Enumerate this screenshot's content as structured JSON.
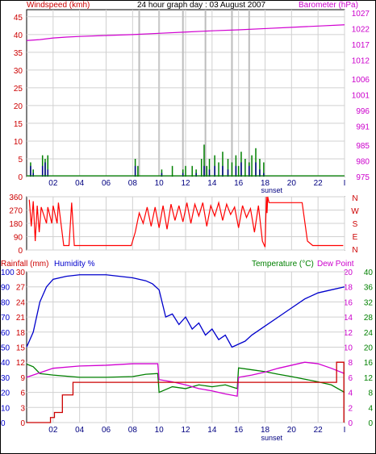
{
  "header": {
    "left_label": "Windspeed (kmh)",
    "title": "24 hour graph day : 03 August 2007",
    "right_label": "Barometer (hPa)"
  },
  "colors": {
    "windspeed": "#00008b",
    "gust": "#008000",
    "barometer": "#d100d1",
    "direction": "#ff0000",
    "temperature": "#008000",
    "dewpoint": "#d100d1",
    "humidity": "#0000cc",
    "rainfall": "#cc0000",
    "axis_red": "#cc0000",
    "axis_magenta": "#cc00cc",
    "axis_green": "#008000",
    "axis_blue": "#0000cc"
  },
  "bottom_legend": {
    "rainfall": "Rainfall (mm)",
    "humidity": "Humidity %",
    "temperature": "Temperature (°C)",
    "dewpoint": "Dew Point"
  },
  "x_axis": {
    "hour_labels": [
      "02",
      "04",
      "06",
      "08",
      "10",
      "12",
      "14",
      "16",
      "18",
      "20",
      "22",
      "I"
    ],
    "sunset_label": "sunset"
  },
  "chart_data": [
    {
      "type": "line",
      "name": "wind_barometer",
      "x_range_hours": [
        0,
        24
      ],
      "gray_lines_hours": [
        8.5,
        10,
        11.8,
        13.5,
        15.5,
        16.8
      ],
      "y_left": {
        "label": "Windspeed (kmh)",
        "ticks": [
          0,
          5,
          10,
          15,
          20,
          25,
          30,
          35,
          40,
          45
        ],
        "range": [
          0,
          47
        ]
      },
      "y_right": {
        "label": "Barometer (hPa)",
        "ticks": [
          975,
          980,
          985,
          991,
          996,
          1001,
          1006,
          1012,
          1017,
          1022,
          1027
        ],
        "range": [
          975,
          1028
        ]
      },
      "series": [
        {
          "key": "barometer",
          "axis": "right",
          "x": [
            0,
            1,
            2,
            3,
            4,
            6,
            8,
            10,
            12,
            14,
            16,
            18,
            20,
            22,
            24
          ],
          "y": [
            1018.2,
            1018.5,
            1019.0,
            1019.3,
            1019.5,
            1019.8,
            1020.1,
            1020.5,
            1020.9,
            1021.3,
            1021.6,
            1022.0,
            1022.4,
            1022.8,
            1023.2
          ]
        },
        {
          "key": "gust",
          "axis": "left",
          "x": [
            0.3,
            0.5,
            1.2,
            1.4,
            1.6,
            8.2,
            8.4,
            10.2,
            11.0,
            11.8,
            12.0,
            12.5,
            12.8,
            13.2,
            13.4,
            13.6,
            13.8,
            14.2,
            14.5,
            14.8,
            15.2,
            15.5,
            15.8,
            16.0,
            16.2,
            16.5,
            16.8,
            17.0,
            17.3,
            17.6,
            17.9
          ],
          "y": [
            4,
            2,
            6,
            5,
            6,
            5,
            3,
            2,
            3,
            2,
            3,
            3,
            2,
            5,
            9,
            3,
            5,
            6,
            4,
            7,
            5,
            4,
            6,
            3,
            7,
            5,
            4,
            6,
            8,
            5,
            4
          ]
        },
        {
          "key": "windspeed",
          "axis": "left",
          "x": [
            0.3,
            0.5,
            1.2,
            1.4,
            1.6,
            8.2,
            10.2,
            11.8,
            12.8,
            13.4,
            13.8,
            14.2,
            14.8,
            15.2,
            15.8,
            16.2,
            16.8,
            17.3,
            17.6,
            17.9
          ],
          "y": [
            3,
            1,
            3,
            4,
            2,
            3,
            1,
            1,
            1,
            3,
            2,
            3,
            3,
            2,
            3,
            4,
            3,
            4,
            2,
            1
          ]
        }
      ]
    },
    {
      "type": "line",
      "name": "wind_direction",
      "x_range_hours": [
        0,
        24
      ],
      "y_left": {
        "ticks": [
          0,
          90,
          180,
          270,
          360
        ],
        "range": [
          0,
          360
        ]
      },
      "y_right_labels": [
        "N",
        "W",
        "S",
        "E",
        "N"
      ],
      "series": [
        {
          "key": "direction",
          "x": [
            0.2,
            0.35,
            0.5,
            0.65,
            0.8,
            0.95,
            1.1,
            1.5,
            1.6,
            1.9,
            2.0,
            2.3,
            2.4,
            2.8,
            3.0,
            3.2,
            3.4,
            3.6,
            3.8,
            4.5,
            5.0,
            6.0,
            7.0,
            7.9,
            8.2,
            8.5,
            8.8,
            9.1,
            9.4,
            9.7,
            10.0,
            10.3,
            10.6,
            10.9,
            11.2,
            11.5,
            11.8,
            12.1,
            12.4,
            12.7,
            13.0,
            13.3,
            13.6,
            13.9,
            14.2,
            14.5,
            14.8,
            15.1,
            15.4,
            15.7,
            16.0,
            16.3,
            16.6,
            16.9,
            17.2,
            17.5,
            17.8,
            18.0,
            18.1,
            18.15,
            18.2,
            18.3,
            18.6,
            18.8,
            19.0,
            19.5,
            20.0,
            20.5,
            20.8,
            21.2,
            21.6,
            22.0,
            23.0,
            23.9
          ],
          "y": [
            340,
            160,
            330,
            60,
            300,
            120,
            290,
            180,
            290,
            180,
            300,
            180,
            320,
            30,
            30,
            30,
            320,
            30,
            30,
            30,
            30,
            30,
            30,
            30,
            120,
            250,
            180,
            290,
            160,
            290,
            150,
            300,
            140,
            310,
            200,
            300,
            190,
            320,
            180,
            310,
            230,
            320,
            160,
            300,
            230,
            320,
            200,
            310,
            240,
            290,
            150,
            300,
            220,
            280,
            120,
            300,
            60,
            20,
            360,
            250,
            360,
            320,
            320,
            320,
            320,
            320,
            320,
            320,
            320,
            60,
            30,
            30,
            30,
            30
          ]
        }
      ]
    },
    {
      "type": "line",
      "name": "temperature_humidity_rain",
      "x_range_hours": [
        0,
        24
      ],
      "y_axes": {
        "humidity": {
          "ticks": [
            0,
            10,
            20,
            30,
            40,
            50,
            60,
            70,
            80,
            90,
            100
          ],
          "range": [
            0,
            100
          ]
        },
        "rainfall": {
          "ticks": [
            0,
            3,
            6,
            9,
            12,
            15,
            18,
            21,
            24,
            27,
            30
          ],
          "range": [
            0,
            30
          ]
        },
        "temperature": {
          "ticks": [
            0,
            4,
            8,
            12,
            16,
            20,
            24,
            28,
            32,
            36,
            40
          ],
          "range": [
            0,
            40
          ]
        },
        "dewpoint": {
          "ticks": [
            0,
            2,
            4,
            6,
            8,
            10,
            12,
            14,
            16,
            18,
            20
          ],
          "range": [
            0,
            20
          ]
        }
      },
      "series": [
        {
          "key": "humidity",
          "x": [
            0,
            0.5,
            1.0,
            1.5,
            2.0,
            3.0,
            4.0,
            5.0,
            6.0,
            7.0,
            8.0,
            9.0,
            9.5,
            10.0,
            10.5,
            11.0,
            11.5,
            12.0,
            12.5,
            13.0,
            13.5,
            14.0,
            14.5,
            15.0,
            15.5,
            16.0,
            16.5,
            17.0,
            18.0,
            19.0,
            20.0,
            21.0,
            22.0,
            23.0,
            24.0
          ],
          "y": [
            50,
            60,
            80,
            90,
            95,
            97,
            98,
            98,
            98,
            97,
            96,
            94,
            92,
            88,
            70,
            72,
            65,
            70,
            62,
            66,
            58,
            62,
            55,
            58,
            50,
            52,
            54,
            58,
            64,
            70,
            76,
            82,
            86,
            88,
            90
          ]
        },
        {
          "key": "temperature",
          "x": [
            0,
            0.5,
            1.0,
            2.0,
            3.0,
            4.0,
            6.0,
            8.0,
            9.0,
            9.9,
            10.0,
            11.0,
            12.0,
            13.0,
            14.0,
            15.0,
            15.9,
            16.0,
            17.0,
            18.0,
            19.0,
            20.0,
            21.0,
            22.0,
            23.0,
            24.0
          ],
          "y": [
            15.5,
            14.8,
            13.0,
            12.6,
            12.3,
            12.0,
            12.0,
            12.2,
            12.8,
            13.0,
            8.0,
            9.5,
            9.0,
            10.0,
            9.5,
            10.0,
            9.0,
            14.5,
            14.0,
            13.5,
            12.8,
            12.2,
            11.5,
            10.8,
            10.0,
            8.0
          ]
        },
        {
          "key": "dewpoint",
          "x": [
            0,
            1.0,
            2.0,
            4.0,
            6.0,
            8.0,
            9.9,
            10.0,
            11.0,
            12.0,
            13.0,
            14.0,
            15.0,
            15.9,
            16.0,
            17.0,
            18.0,
            19.0,
            20.0,
            21.0,
            22.0,
            23.0,
            24.0
          ],
          "y": [
            6.0,
            6.6,
            7.2,
            7.5,
            7.6,
            7.8,
            7.8,
            5.7,
            5.4,
            5.0,
            4.5,
            4.2,
            3.8,
            3.5,
            6.0,
            6.3,
            6.7,
            7.2,
            7.6,
            8.0,
            7.8,
            7.2,
            6.5
          ]
        },
        {
          "key": "rainfall",
          "x": [
            0,
            1.8,
            1.8,
            2.1,
            2.1,
            2.7,
            2.7,
            3.5,
            3.5,
            23.4,
            23.4,
            23.95,
            23.95
          ],
          "y": [
            0,
            0,
            1,
            1,
            2,
            2,
            5.5,
            5.5,
            8,
            8,
            12,
            12,
            0
          ]
        }
      ]
    }
  ]
}
